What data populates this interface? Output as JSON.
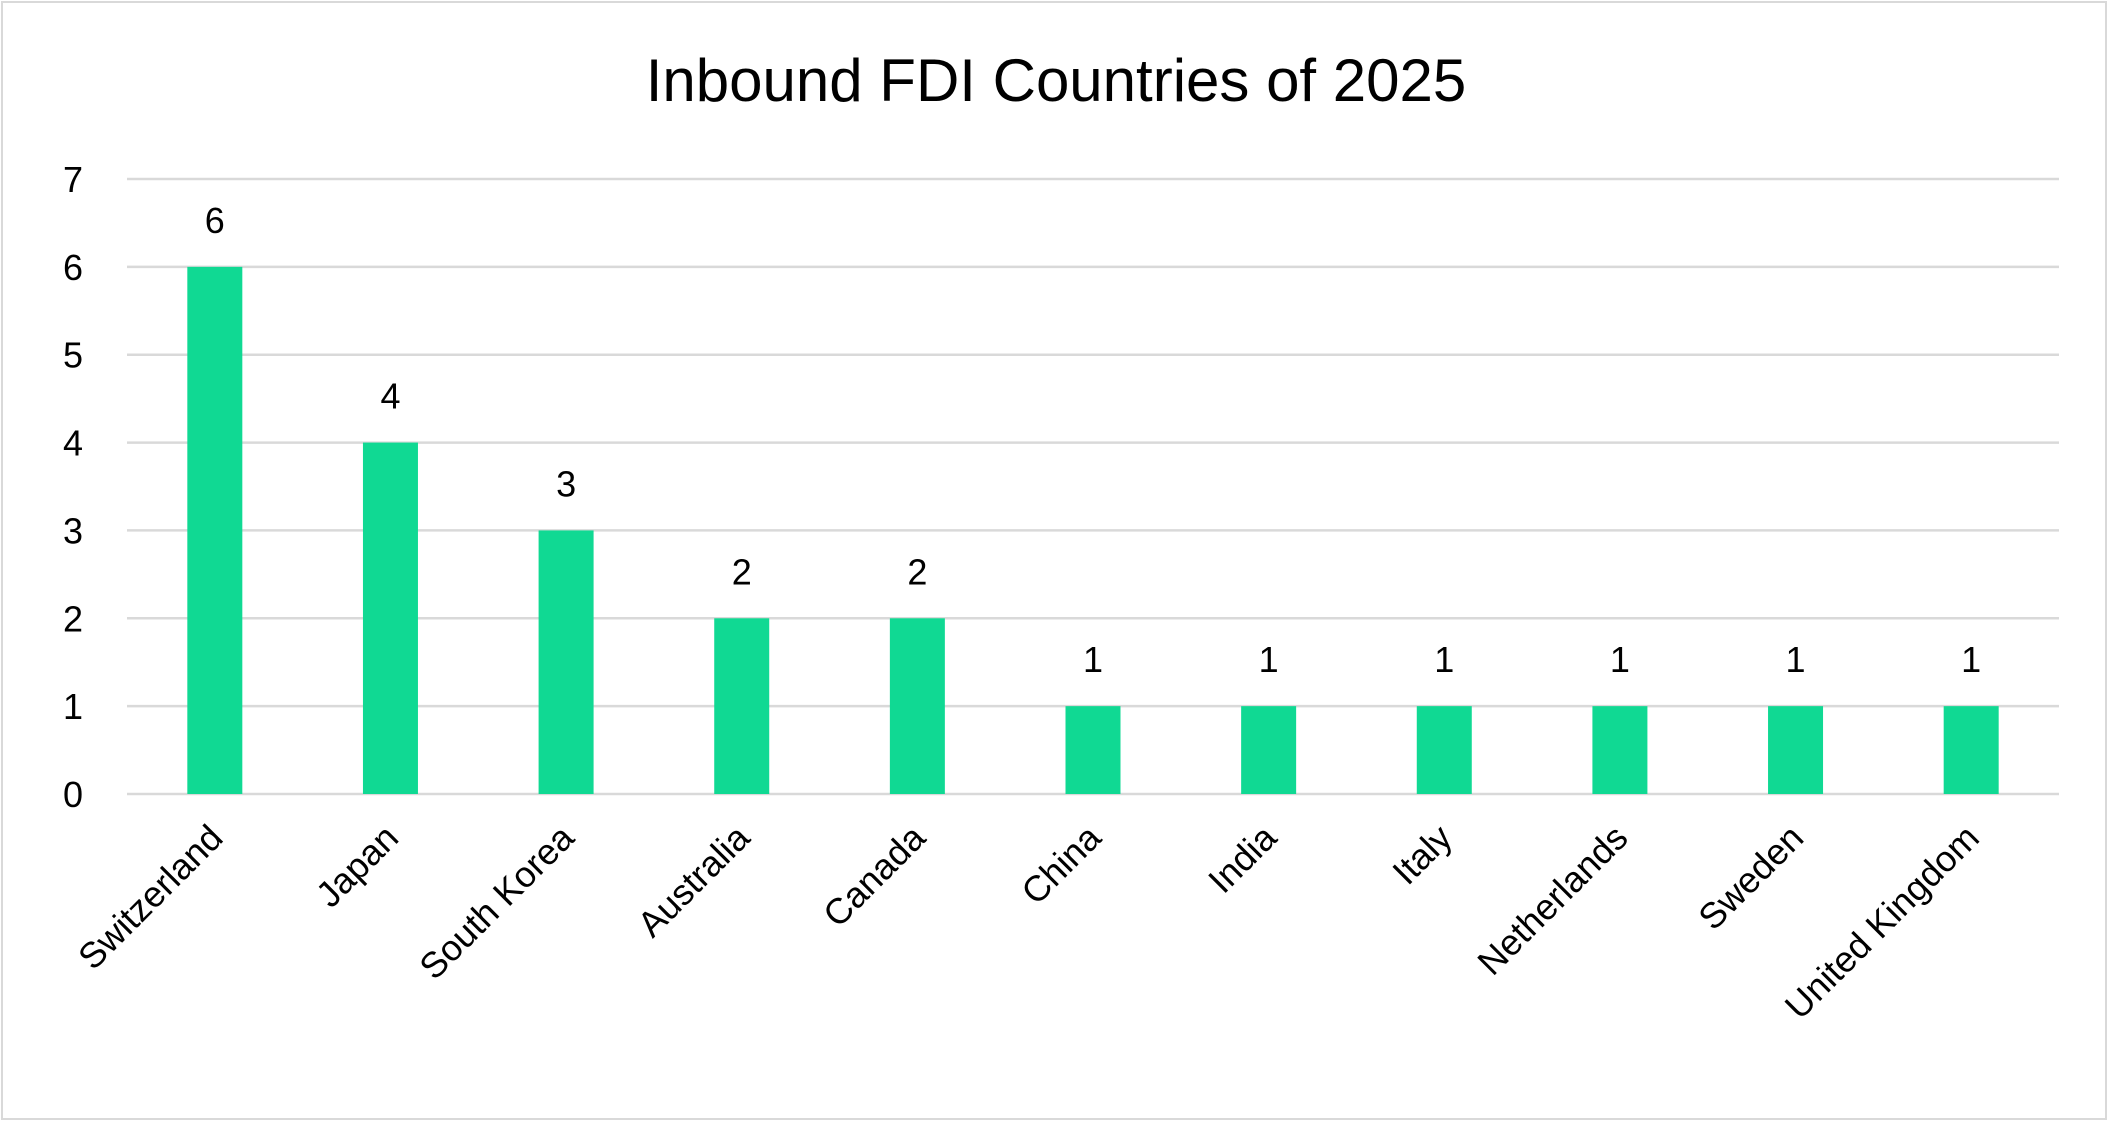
{
  "chart_data": {
    "type": "bar",
    "title": "Inbound FDI Countries of 2025",
    "xlabel": "",
    "ylabel": "",
    "categories": [
      "Switzerland",
      "Japan",
      "South Korea",
      "Australia",
      "Canada",
      "China",
      "India",
      "Italy",
      "Netherlands",
      "Sweden",
      "United Kingdom"
    ],
    "values": [
      6,
      4,
      3,
      2,
      2,
      1,
      1,
      1,
      1,
      1,
      1
    ],
    "ylim": [
      0,
      7
    ],
    "yticks": [
      0,
      1,
      2,
      3,
      4,
      5,
      6,
      7
    ],
    "grid": true,
    "legend": "none",
    "data_labels": true,
    "bar_color": "#10d993",
    "grid_color": "#d9d9d9"
  }
}
